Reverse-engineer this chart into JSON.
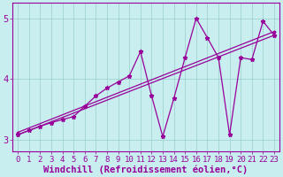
{
  "xlabel": "Windchill (Refroidissement éolien,°C)",
  "bg_color": "#c8eef0",
  "line_color": "#990099",
  "xlim": [
    -0.5,
    23.5
  ],
  "ylim": [
    2.8,
    5.25
  ],
  "yticks": [
    3,
    4,
    5
  ],
  "xticks": [
    0,
    1,
    2,
    3,
    4,
    5,
    6,
    7,
    8,
    9,
    10,
    11,
    12,
    13,
    14,
    15,
    16,
    17,
    18,
    19,
    20,
    21,
    22,
    23
  ],
  "line1_x": [
    0,
    23
  ],
  "line1_y": [
    3.08,
    4.72
  ],
  "line2_x": [
    0,
    23
  ],
  "line2_y": [
    3.12,
    4.78
  ],
  "zigzag_x": [
    0,
    1,
    2,
    3,
    4,
    5,
    6,
    7,
    8,
    9,
    10,
    11,
    12,
    13,
    14,
    15,
    16,
    17,
    18,
    19,
    20,
    21,
    22,
    23
  ],
  "zigzag_y": [
    3.08,
    3.15,
    3.22,
    3.28,
    3.33,
    3.38,
    3.55,
    3.72,
    3.85,
    3.95,
    4.05,
    4.45,
    3.72,
    3.05,
    3.68,
    4.35,
    5.0,
    4.68,
    4.35,
    3.08,
    4.35,
    4.32,
    4.95,
    4.72
  ],
  "grid_color": "#99cccc",
  "tick_fontsize": 6.5,
  "xlabel_fontsize": 7.5
}
